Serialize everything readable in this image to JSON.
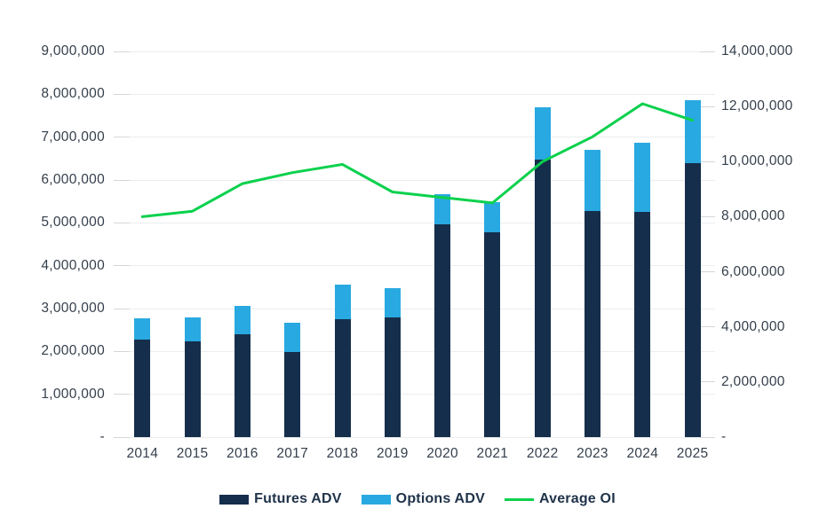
{
  "chart_data": {
    "type": "bar",
    "variant": "stacked-columns-with-overlay-line",
    "title": "",
    "categories": [
      "2014",
      "2015",
      "2016",
      "2017",
      "2018",
      "2019",
      "2020",
      "2021",
      "2022",
      "2023",
      "2024",
      "2025"
    ],
    "series": [
      {
        "name": "Futures ADV",
        "type": "bar",
        "stack": "adv",
        "axis": "left",
        "color": "#152e4b",
        "values": [
          2270000,
          2240000,
          2400000,
          1990000,
          2750000,
          2800000,
          4970000,
          4780000,
          6480000,
          5280000,
          5260000,
          6390000
        ]
      },
      {
        "name": "Options ADV",
        "type": "bar",
        "stack": "adv",
        "axis": "left",
        "color": "#29a9e1",
        "values": [
          500000,
          560000,
          660000,
          680000,
          810000,
          680000,
          700000,
          700000,
          1220000,
          1420000,
          1610000,
          1470000
        ]
      },
      {
        "name": "Average OI",
        "type": "line",
        "axis": "right",
        "color": "#0bd14d",
        "values": [
          8000000,
          8200000,
          9200000,
          9600000,
          9900000,
          8900000,
          8700000,
          8500000,
          10000000,
          10900000,
          12100000,
          11500000
        ]
      }
    ],
    "left_axis": {
      "min": 0,
      "max": 9000000,
      "step": 1000000,
      "tick_labels": [
        "-",
        "1,000,000",
        "2,000,000",
        "3,000,000",
        "4,000,000",
        "5,000,000",
        "6,000,000",
        "7,000,000",
        "8,000,000",
        "9,000,000"
      ]
    },
    "right_axis": {
      "min": 0,
      "max": 14000000,
      "step": 2000000,
      "tick_labels": [
        "-",
        "2,000,000",
        "4,000,000",
        "6,000,000",
        "8,000,000",
        "10,000,000",
        "12,000,000",
        "14,000,000"
      ]
    },
    "grid": true,
    "legend_position": "bottom"
  },
  "colors": {
    "background": "#ffffff",
    "gridline": "#ebedee",
    "tick": "#d3d7db",
    "axis_text": "#343f4b",
    "legend_text": "#203349",
    "futures_bar": "#152e4b",
    "options_bar": "#29a9e1",
    "average_oi_line": "#0bd14d"
  }
}
